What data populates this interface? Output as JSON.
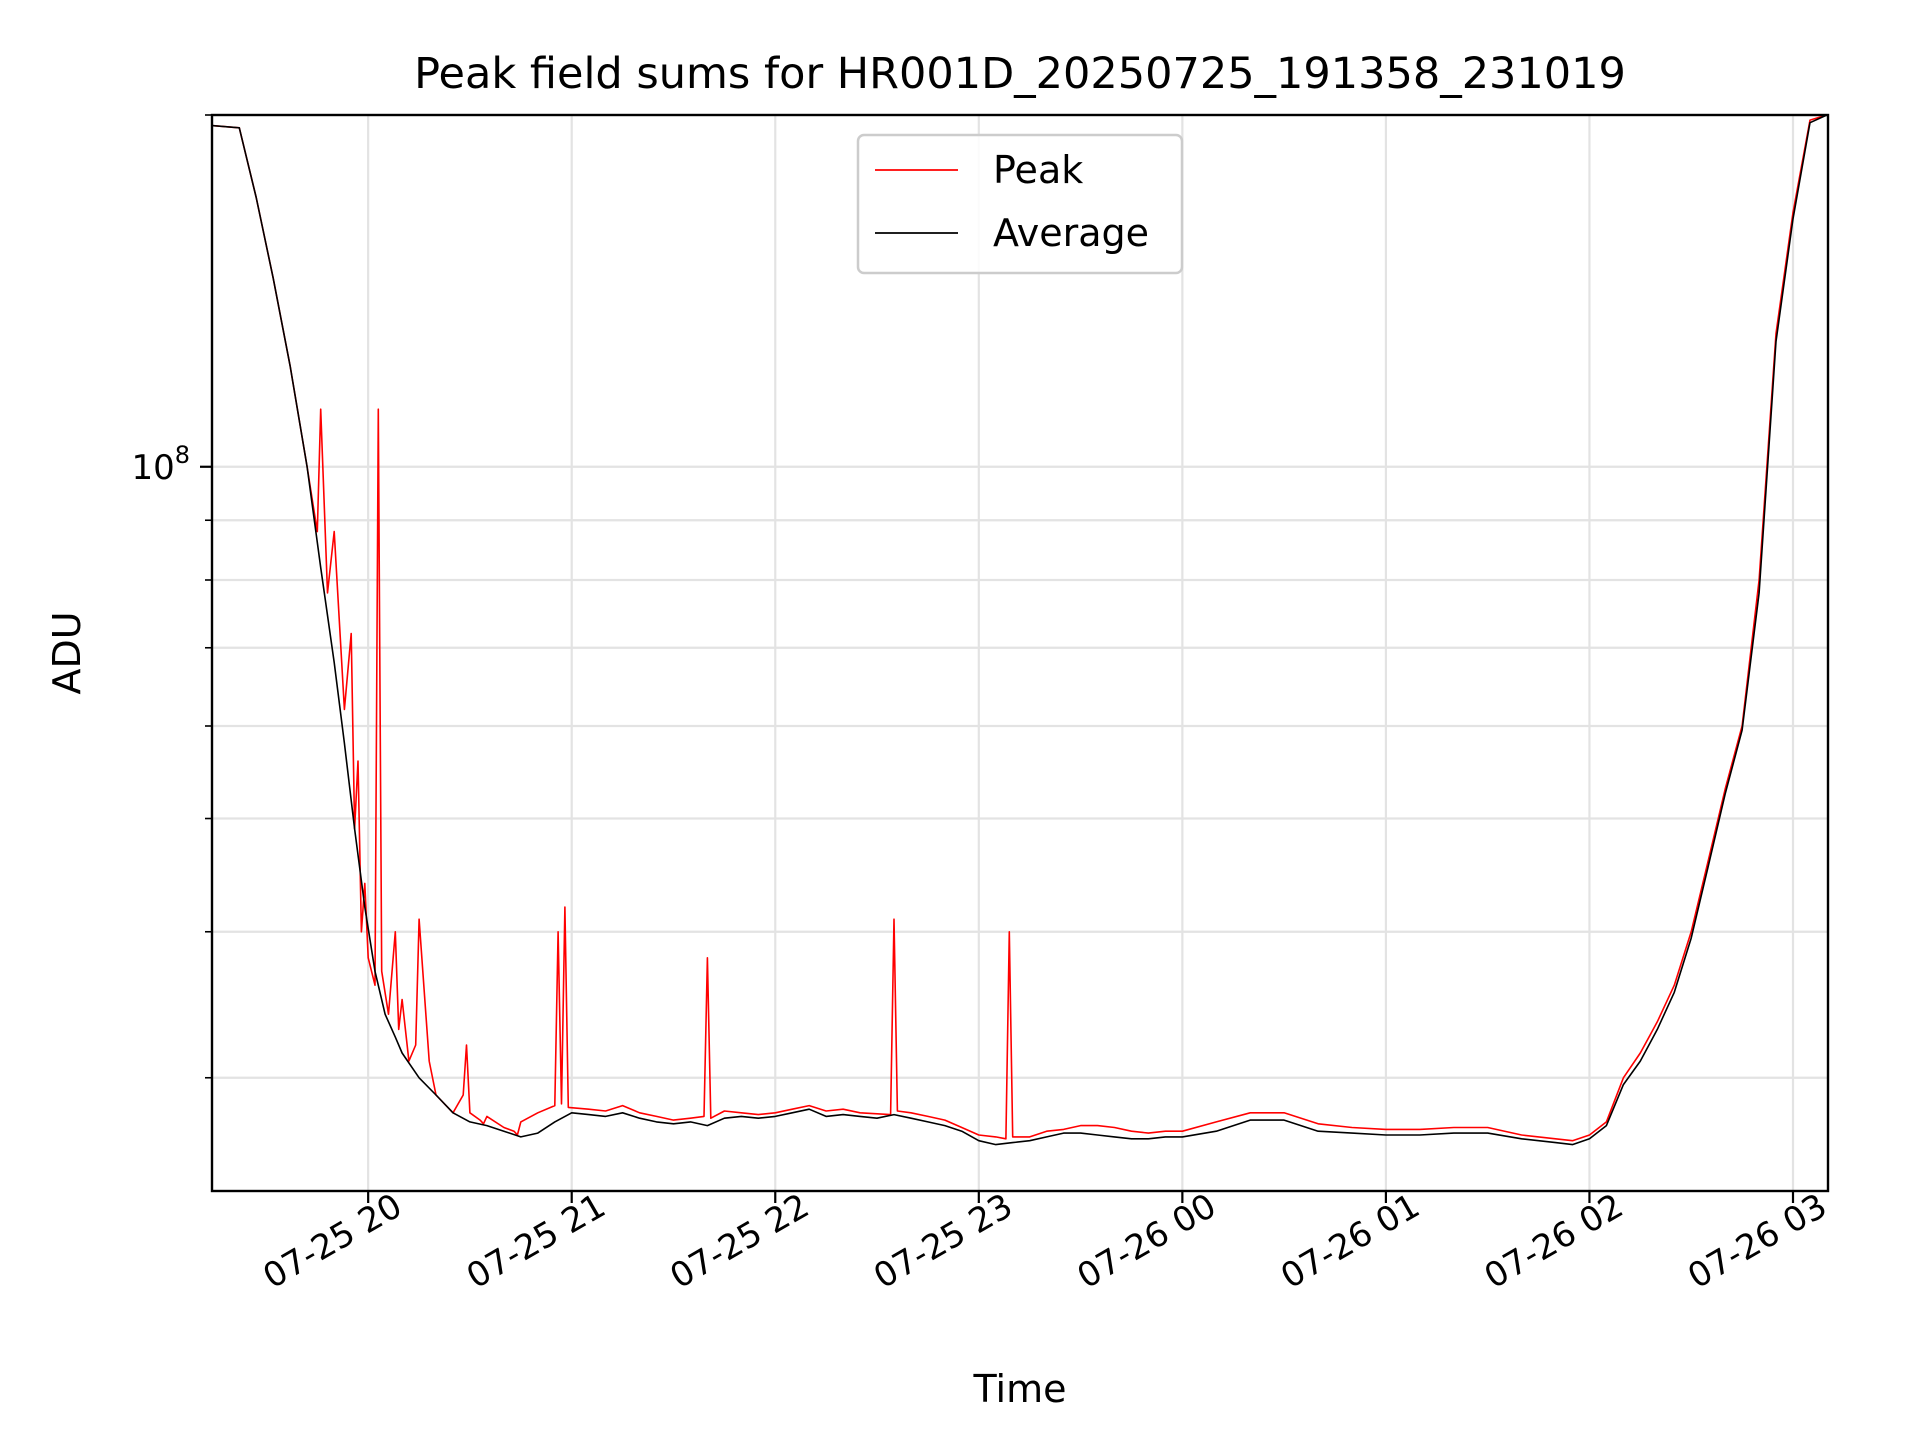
{
  "chart_data": {
    "type": "line",
    "title": "Peak field sums for HR001D_20250725_191358_231019",
    "xlabel": "Time",
    "ylabel": "ADU",
    "y_scale": "log",
    "ylim": [
      24000000.0,
      200000000.0
    ],
    "xlim": [
      "2025-07-25 19:13:58",
      "2025-07-26 03:10:19"
    ],
    "grid": true,
    "legend_position": "top-center",
    "x_ticks": [
      {
        "t": "2025-07-25 20:00",
        "label": "07-25 20"
      },
      {
        "t": "2025-07-25 21:00",
        "label": "07-25 21"
      },
      {
        "t": "2025-07-25 22:00",
        "label": "07-25 22"
      },
      {
        "t": "2025-07-25 23:00",
        "label": "07-25 23"
      },
      {
        "t": "2025-07-26 00:00",
        "label": "07-26 00"
      },
      {
        "t": "2025-07-26 01:00",
        "label": "07-26 01"
      },
      {
        "t": "2025-07-26 02:00",
        "label": "07-26 02"
      },
      {
        "t": "2025-07-26 03:00",
        "label": "07-26 03"
      }
    ],
    "y_ticks": [
      {
        "value": 100000000,
        "label_base": "10",
        "label_exp": "8"
      }
    ],
    "series": [
      {
        "name": "Peak",
        "color": "#ff0000",
        "x": [
          "2025-07-25 19:13",
          "2025-07-25 19:22",
          "2025-07-25 19:27",
          "2025-07-25 19:32",
          "2025-07-25 19:37",
          "2025-07-25 19:42",
          "2025-07-25 19:45",
          "2025-07-25 19:46",
          "2025-07-25 19:48",
          "2025-07-25 19:50",
          "2025-07-25 19:53",
          "2025-07-25 19:55",
          "2025-07-25 19:56",
          "2025-07-25 19:57",
          "2025-07-25 19:58",
          "2025-07-25 19:59",
          "2025-07-25 20:00",
          "2025-07-25 20:02",
          "2025-07-25 20:03",
          "2025-07-25 20:04",
          "2025-07-25 20:06",
          "2025-07-25 20:08",
          "2025-07-25 20:09",
          "2025-07-25 20:10",
          "2025-07-25 20:12",
          "2025-07-25 20:14",
          "2025-07-25 20:15",
          "2025-07-25 20:18",
          "2025-07-25 20:20",
          "2025-07-25 20:25",
          "2025-07-25 20:28",
          "2025-07-25 20:29",
          "2025-07-25 20:30",
          "2025-07-25 20:33",
          "2025-07-25 20:34",
          "2025-07-25 20:35",
          "2025-07-25 20:40",
          "2025-07-25 20:43",
          "2025-07-25 20:44",
          "2025-07-25 20:45",
          "2025-07-25 20:50",
          "2025-07-25 20:55",
          "2025-07-25 20:56",
          "2025-07-25 20:57",
          "2025-07-25 20:58",
          "2025-07-25 20:59",
          "2025-07-25 21:05",
          "2025-07-25 21:10",
          "2025-07-25 21:15",
          "2025-07-25 21:20",
          "2025-07-25 21:25",
          "2025-07-25 21:30",
          "2025-07-25 21:35",
          "2025-07-25 21:39",
          "2025-07-25 21:40",
          "2025-07-25 21:41",
          "2025-07-25 21:45",
          "2025-07-25 21:50",
          "2025-07-25 21:55",
          "2025-07-25 22:00",
          "2025-07-25 22:05",
          "2025-07-25 22:10",
          "2025-07-25 22:15",
          "2025-07-25 22:20",
          "2025-07-25 22:25",
          "2025-07-25 22:34",
          "2025-07-25 22:35",
          "2025-07-25 22:36",
          "2025-07-25 22:40",
          "2025-07-25 22:45",
          "2025-07-25 22:50",
          "2025-07-25 22:55",
          "2025-07-25 23:00",
          "2025-07-25 23:05",
          "2025-07-25 23:08",
          "2025-07-25 23:09",
          "2025-07-25 23:10",
          "2025-07-25 23:15",
          "2025-07-25 23:20",
          "2025-07-25 23:25",
          "2025-07-25 23:30",
          "2025-07-25 23:35",
          "2025-07-25 23:40",
          "2025-07-25 23:45",
          "2025-07-25 23:50",
          "2025-07-25 23:55",
          "2025-07-26 00:00",
          "2025-07-26 00:10",
          "2025-07-26 00:20",
          "2025-07-26 00:30",
          "2025-07-26 00:40",
          "2025-07-26 00:50",
          "2025-07-26 01:00",
          "2025-07-26 01:10",
          "2025-07-26 01:20",
          "2025-07-26 01:30",
          "2025-07-26 01:40",
          "2025-07-26 01:50",
          "2025-07-26 01:55",
          "2025-07-26 02:00",
          "2025-07-26 02:05",
          "2025-07-26 02:10",
          "2025-07-26 02:15",
          "2025-07-26 02:20",
          "2025-07-26 02:25",
          "2025-07-26 02:30",
          "2025-07-26 02:35",
          "2025-07-26 02:40",
          "2025-07-26 02:45",
          "2025-07-26 02:50",
          "2025-07-26 02:55",
          "2025-07-26 03:00",
          "2025-07-26 03:05",
          "2025-07-26 03:10"
        ],
        "y": [
          196000000,
          195000000,
          170000000,
          145000000,
          122000000,
          100000000,
          88000000,
          112000000,
          78000000,
          88000000,
          62000000,
          72000000,
          49000000,
          56000000,
          40000000,
          44000000,
          38000000,
          36000000,
          112000000,
          37000000,
          34000000,
          40000000,
          33000000,
          35000000,
          31000000,
          32000000,
          41000000,
          31000000,
          29000000,
          28000000,
          29000000,
          32000000,
          28000000,
          27600000,
          27400000,
          27800000,
          27200000,
          27000000,
          26800000,
          27500000,
          28000000,
          28400000,
          40000000,
          28500000,
          42000000,
          28300000,
          28200000,
          28100000,
          28400000,
          28000000,
          27800000,
          27600000,
          27700000,
          27800000,
          38000000,
          27700000,
          28100000,
          28000000,
          27900000,
          28000000,
          28200000,
          28400000,
          28100000,
          28200000,
          28000000,
          27900000,
          41000000,
          28100000,
          28000000,
          27800000,
          27600000,
          27200000,
          26800000,
          26700000,
          26600000,
          40000000,
          26700000,
          26700000,
          27000000,
          27100000,
          27300000,
          27300000,
          27200000,
          27000000,
          26900000,
          27000000,
          27000000,
          27500000,
          28000000,
          28000000,
          27400000,
          27200000,
          27100000,
          27100000,
          27200000,
          27200000,
          26800000,
          26600000,
          26500000,
          26800000,
          27500000,
          30000000,
          31500000,
          33500000,
          36000000,
          40000000,
          46000000,
          53000000,
          60000000,
          80000000,
          130000000,
          165000000,
          198000000,
          200000000
        ]
      },
      {
        "name": "Average",
        "color": "#000000",
        "x": [
          "2025-07-25 19:13",
          "2025-07-25 19:22",
          "2025-07-25 19:27",
          "2025-07-25 19:32",
          "2025-07-25 19:37",
          "2025-07-25 19:42",
          "2025-07-25 19:46",
          "2025-07-25 19:50",
          "2025-07-25 19:53",
          "2025-07-25 19:56",
          "2025-07-25 19:59",
          "2025-07-25 20:02",
          "2025-07-25 20:05",
          "2025-07-25 20:08",
          "2025-07-25 20:10",
          "2025-07-25 20:15",
          "2025-07-25 20:20",
          "2025-07-25 20:25",
          "2025-07-25 20:30",
          "2025-07-25 20:35",
          "2025-07-25 20:40",
          "2025-07-25 20:45",
          "2025-07-25 20:50",
          "2025-07-25 20:55",
          "2025-07-25 21:00",
          "2025-07-25 21:05",
          "2025-07-25 21:10",
          "2025-07-25 21:15",
          "2025-07-25 21:20",
          "2025-07-25 21:25",
          "2025-07-25 21:30",
          "2025-07-25 21:35",
          "2025-07-25 21:40",
          "2025-07-25 21:45",
          "2025-07-25 21:50",
          "2025-07-25 21:55",
          "2025-07-25 22:00",
          "2025-07-25 22:05",
          "2025-07-25 22:10",
          "2025-07-25 22:15",
          "2025-07-25 22:20",
          "2025-07-25 22:25",
          "2025-07-25 22:30",
          "2025-07-25 22:35",
          "2025-07-25 22:40",
          "2025-07-25 22:45",
          "2025-07-25 22:50",
          "2025-07-25 22:55",
          "2025-07-25 23:00",
          "2025-07-25 23:05",
          "2025-07-25 23:10",
          "2025-07-25 23:15",
          "2025-07-25 23:20",
          "2025-07-25 23:25",
          "2025-07-25 23:30",
          "2025-07-25 23:35",
          "2025-07-25 23:40",
          "2025-07-25 23:45",
          "2025-07-25 23:50",
          "2025-07-25 23:55",
          "2025-07-26 00:00",
          "2025-07-26 00:10",
          "2025-07-26 00:20",
          "2025-07-26 00:30",
          "2025-07-26 00:40",
          "2025-07-26 00:50",
          "2025-07-26 01:00",
          "2025-07-26 01:10",
          "2025-07-26 01:20",
          "2025-07-26 01:30",
          "2025-07-26 01:40",
          "2025-07-26 01:50",
          "2025-07-26 01:55",
          "2025-07-26 02:00",
          "2025-07-26 02:05",
          "2025-07-26 02:10",
          "2025-07-26 02:15",
          "2025-07-26 02:20",
          "2025-07-26 02:25",
          "2025-07-26 02:30",
          "2025-07-26 02:35",
          "2025-07-26 02:40",
          "2025-07-26 02:45",
          "2025-07-26 02:50",
          "2025-07-26 02:55",
          "2025-07-26 03:00",
          "2025-07-26 03:05",
          "2025-07-26 03:10"
        ],
        "y": [
          196000000,
          195000000,
          170000000,
          145000000,
          122000000,
          100000000,
          82000000,
          68000000,
          58000000,
          49000000,
          42000000,
          37000000,
          34000000,
          32500000,
          31500000,
          30000000,
          29000000,
          28000000,
          27500000,
          27300000,
          27000000,
          26700000,
          26900000,
          27500000,
          28000000,
          27900000,
          27800000,
          28000000,
          27700000,
          27500000,
          27400000,
          27500000,
          27300000,
          27700000,
          27800000,
          27700000,
          27800000,
          28000000,
          28200000,
          27800000,
          27900000,
          27800000,
          27700000,
          27900000,
          27700000,
          27500000,
          27300000,
          27000000,
          26500000,
          26300000,
          26400000,
          26500000,
          26700000,
          26900000,
          26900000,
          26800000,
          26700000,
          26600000,
          26600000,
          26700000,
          26700000,
          27000000,
          27600000,
          27600000,
          27000000,
          26900000,
          26800000,
          26800000,
          26900000,
          26900000,
          26600000,
          26400000,
          26300000,
          26600000,
          27300000,
          29600000,
          31000000,
          33000000,
          35500000,
          39500000,
          45500000,
          52500000,
          59500000,
          78000000,
          128000000,
          163000000,
          197000000,
          200000000
        ]
      }
    ]
  }
}
